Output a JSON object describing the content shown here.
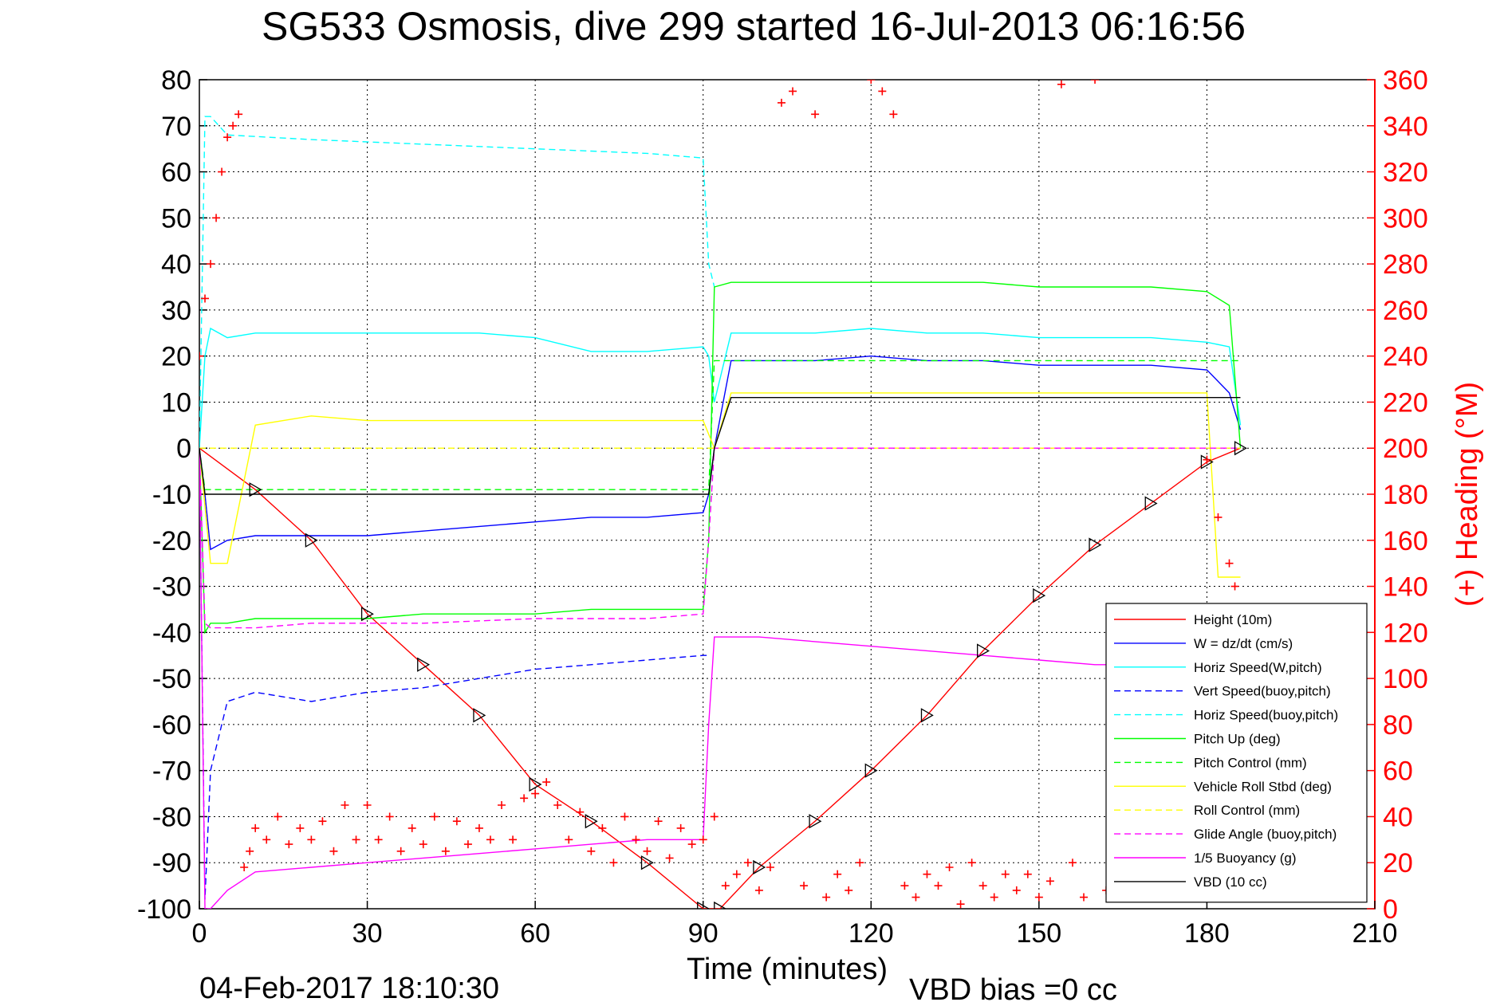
{
  "chart_data": {
    "type": "line",
    "title": "SG533 Osmosis, dive 299 started 16-Jul-2013 06:16:56",
    "xlabel": "Time (minutes)",
    "ylabel_right": "(+) Heading (°M)",
    "footer_left": "04-Feb-2017 18:10:30",
    "footer_right": "VBD bias =0 cc",
    "xlim": [
      0,
      210
    ],
    "ylim": [
      -100,
      80
    ],
    "ylim_right": [
      0,
      360
    ],
    "x_ticks": [
      "0",
      "30",
      "60",
      "90",
      "120",
      "150",
      "180",
      "210"
    ],
    "y_ticks_left": [
      "80",
      "70",
      "60",
      "50",
      "40",
      "30",
      "20",
      "10",
      "0",
      "-10",
      "-20",
      "-30",
      "-40",
      "-50",
      "-60",
      "-70",
      "-80",
      "-90",
      "-100"
    ],
    "y_ticks_right": [
      "360",
      "340",
      "320",
      "300",
      "280",
      "260",
      "240",
      "220",
      "200",
      "180",
      "160",
      "140",
      "120",
      "100",
      "80",
      "60",
      "40",
      "20",
      "0"
    ],
    "grid": true,
    "legend_position": "bottom-right",
    "series": [
      {
        "name": "Height (10m)",
        "color": "#ff0000",
        "style": "solid",
        "x": [
          0,
          10,
          20,
          30,
          40,
          50,
          60,
          70,
          80,
          90,
          93,
          100,
          110,
          120,
          130,
          140,
          150,
          160,
          170,
          180,
          186
        ],
        "y": [
          0,
          -9,
          -20,
          -36,
          -47,
          -58,
          -73,
          -81,
          -90,
          -100,
          -100,
          -91,
          -81,
          -70,
          -58,
          -44,
          -32,
          -21,
          -12,
          -3,
          0
        ]
      },
      {
        "name": "W = dz/dt (cm/s)",
        "color": "#0000ff",
        "style": "solid",
        "x": [
          0,
          1,
          2,
          5,
          10,
          20,
          30,
          40,
          50,
          60,
          70,
          80,
          90,
          91,
          92,
          95,
          100,
          110,
          120,
          130,
          140,
          150,
          160,
          170,
          180,
          184,
          186
        ],
        "y": [
          0,
          -10,
          -22,
          -20,
          -19,
          -19,
          -19,
          -18,
          -17,
          -16,
          -15,
          -15,
          -14,
          -10,
          0,
          19,
          19,
          19,
          20,
          19,
          19,
          18,
          18,
          18,
          17,
          12,
          4
        ]
      },
      {
        "name": "Horiz Speed(W,pitch)",
        "color": "#00ffff",
        "style": "solid",
        "x": [
          0,
          1,
          2,
          5,
          10,
          20,
          30,
          40,
          50,
          60,
          70,
          80,
          90,
          91,
          92,
          95,
          100,
          110,
          120,
          130,
          140,
          150,
          160,
          170,
          180,
          184,
          186
        ],
        "y": [
          0,
          20,
          26,
          24,
          25,
          25,
          25,
          25,
          25,
          24,
          21,
          21,
          22,
          20,
          10,
          25,
          25,
          25,
          26,
          25,
          25,
          24,
          24,
          24,
          23,
          22,
          5
        ]
      },
      {
        "name": "Vert Speed(buoy,pitch)",
        "color": "#0000ff",
        "style": "dashed",
        "x": [
          0,
          1,
          2,
          5,
          10,
          20,
          30,
          40,
          50,
          60,
          70,
          80,
          90,
          91
        ],
        "y": [
          0,
          -98,
          -70,
          -55,
          -53,
          -55,
          -53,
          -52,
          -50,
          -48,
          -47,
          -46,
          -45,
          -45
        ]
      },
      {
        "name": "Horiz Speed(buoy,pitch)",
        "color": "#00ffff",
        "style": "dashed",
        "x": [
          0,
          1,
          2,
          5,
          20,
          40,
          60,
          80,
          90,
          91,
          92
        ],
        "y": [
          0,
          72,
          72,
          68,
          67,
          66,
          65,
          64,
          63,
          40,
          35
        ]
      },
      {
        "name": "Pitch Up (deg)",
        "color": "#00ff00",
        "style": "solid",
        "x": [
          0,
          1,
          2,
          5,
          10,
          20,
          30,
          40,
          50,
          60,
          70,
          80,
          90,
          91,
          92,
          95,
          100,
          110,
          120,
          130,
          140,
          150,
          160,
          170,
          180,
          184,
          186
        ],
        "y": [
          0,
          -40,
          -38,
          -38,
          -37,
          -37,
          -37,
          -36,
          -36,
          -36,
          -35,
          -35,
          -35,
          -20,
          35,
          36,
          36,
          36,
          36,
          36,
          36,
          35,
          35,
          35,
          34,
          31,
          0
        ]
      },
      {
        "name": "Pitch Control (mm)",
        "color": "#00ff00",
        "style": "dashed",
        "x": [
          0,
          1,
          2,
          90,
          91,
          92,
          186
        ],
        "y": [
          0,
          -9,
          -9,
          -9,
          -9,
          19,
          19
        ]
      },
      {
        "name": "Vehicle Roll Stbd (deg)",
        "color": "#ffff00",
        "style": "solid",
        "x": [
          0,
          2,
          5,
          10,
          20,
          30,
          40,
          50,
          60,
          70,
          80,
          90,
          92,
          95,
          100,
          150,
          180,
          182,
          186
        ],
        "y": [
          0,
          -25,
          -25,
          5,
          7,
          6,
          6,
          6,
          6,
          6,
          6,
          6,
          0,
          12,
          12,
          12,
          12,
          -28,
          -28
        ]
      },
      {
        "name": "Roll Control (mm)",
        "color": "#ffff00",
        "style": "dashed",
        "x": [
          0,
          10,
          20,
          30,
          40,
          50,
          60,
          70,
          80,
          90,
          92,
          100,
          120,
          140,
          160,
          180,
          186
        ],
        "y": [
          0,
          0,
          0,
          0,
          0,
          0,
          0,
          0,
          0,
          0,
          0,
          0,
          0,
          0,
          0,
          0,
          0
        ]
      },
      {
        "name": "Glide Angle (buoy,pitch)",
        "color": "#ff00ff",
        "style": "dashed",
        "x": [
          0,
          1,
          2,
          10,
          20,
          40,
          60,
          80,
          90,
          91,
          92,
          186
        ],
        "y": [
          0,
          -38,
          -39,
          -39,
          -38,
          -38,
          -37,
          -37,
          -36,
          -20,
          0,
          0
        ]
      },
      {
        "name": "1/5 Buoyancy (g)",
        "color": "#ff00ff",
        "style": "solid",
        "x": [
          0,
          1,
          2,
          5,
          10,
          20,
          30,
          40,
          50,
          60,
          70,
          80,
          90,
          91,
          92,
          95,
          100,
          110,
          120,
          130,
          140,
          150,
          160,
          170,
          180,
          186
        ],
        "y": [
          0,
          -100,
          -100,
          -96,
          -92,
          -91,
          -90,
          -89,
          -88,
          -87,
          -86,
          -85,
          -85,
          -60,
          -41,
          -41,
          -41,
          -42,
          -43,
          -44,
          -45,
          -46,
          -47,
          -47,
          -48,
          -48
        ]
      },
      {
        "name": "VBD (10 cc)",
        "color": "#000000",
        "style": "solid",
        "x": [
          0,
          1,
          2,
          90,
          91,
          92,
          95,
          186
        ],
        "y": [
          0,
          -10,
          -10,
          -10,
          -10,
          0,
          11,
          11
        ]
      }
    ],
    "heading": {
      "name": "(+) Heading",
      "color": "#ff0000",
      "marker": "+",
      "x": [
        0,
        1,
        2,
        3,
        4,
        5,
        6,
        7,
        8,
        9,
        10,
        12,
        14,
        16,
        18,
        20,
        22,
        24,
        26,
        28,
        30,
        32,
        34,
        36,
        38,
        40,
        42,
        44,
        46,
        48,
        50,
        52,
        54,
        56,
        58,
        60,
        62,
        64,
        66,
        68,
        70,
        72,
        74,
        76,
        78,
        80,
        82,
        84,
        86,
        88,
        90,
        92,
        94,
        96,
        98,
        100,
        102,
        104,
        106,
        108,
        110,
        112,
        114,
        116,
        118,
        120,
        122,
        124,
        126,
        128,
        130,
        132,
        134,
        136,
        138,
        140,
        142,
        144,
        146,
        148,
        150,
        152,
        154,
        156,
        158,
        160,
        162,
        164,
        166,
        168,
        170,
        172,
        174,
        176,
        178,
        180,
        182,
        184,
        185
      ],
      "y": [
        240,
        265,
        280,
        300,
        320,
        335,
        340,
        345,
        18,
        25,
        35,
        30,
        40,
        28,
        35,
        30,
        38,
        25,
        45,
        30,
        45,
        30,
        40,
        25,
        35,
        28,
        40,
        25,
        38,
        28,
        35,
        30,
        45,
        30,
        48,
        50,
        55,
        45,
        30,
        42,
        25,
        35,
        20,
        40,
        30,
        25,
        38,
        22,
        35,
        28,
        30,
        40,
        10,
        15,
        20,
        8,
        18,
        350,
        355,
        10,
        345,
        5,
        15,
        8,
        20,
        360,
        355,
        345,
        10,
        5,
        15,
        10,
        18,
        2,
        20,
        10,
        5,
        15,
        8,
        15,
        5,
        12,
        358,
        20,
        5,
        360,
        8,
        18,
        10,
        15,
        5,
        18,
        10,
        20,
        12,
        195,
        170,
        150,
        140
      ]
    }
  }
}
